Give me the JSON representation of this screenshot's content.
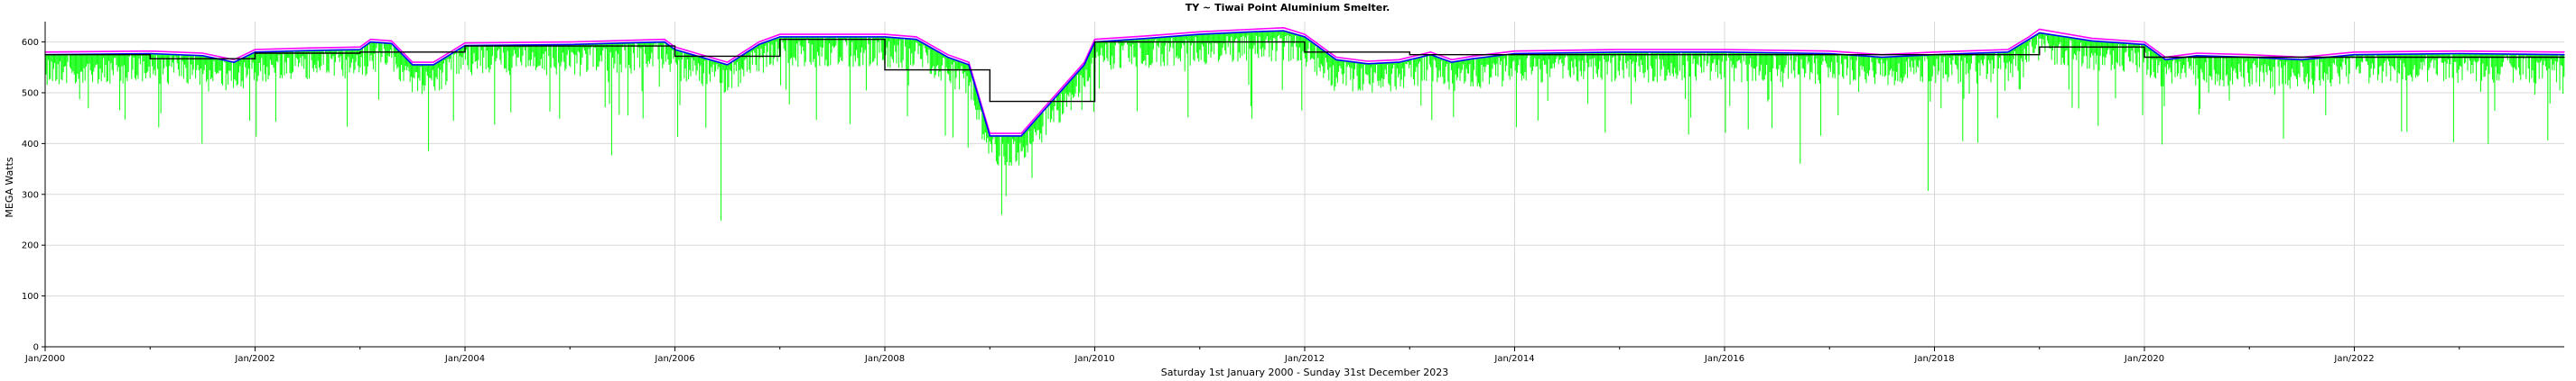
{
  "chart_data": {
    "type": "line",
    "title": "TY ~ Tiwai Point Aluminium Smelter.",
    "ylabel": "MEGA Watts",
    "xlabel": "Saturday 1st January 2000  -  Sunday 31st December 2023",
    "xlim": [
      2000.0,
      2024.0
    ],
    "ylim": [
      0,
      640
    ],
    "grid": true,
    "x_tick_labels": [
      {
        "x": 2000,
        "label": "Jan/2000"
      },
      {
        "x": 2002,
        "label": "Jan/2002"
      },
      {
        "x": 2004,
        "label": "Jan/2004"
      },
      {
        "x": 2006,
        "label": "Jan/2006"
      },
      {
        "x": 2008,
        "label": "Jan/2008"
      },
      {
        "x": 2010,
        "label": "Jan/2010"
      },
      {
        "x": 2012,
        "label": "Jan/2012"
      },
      {
        "x": 2014,
        "label": "Jan/2014"
      },
      {
        "x": 2016,
        "label": "Jan/2016"
      },
      {
        "x": 2018,
        "label": "Jan/2018"
      },
      {
        "x": 2020,
        "label": "Jan/2020"
      },
      {
        "x": 2022,
        "label": "Jan/2022"
      }
    ],
    "y_ticks": [
      0,
      100,
      200,
      300,
      400,
      500,
      600
    ],
    "colors": {
      "max": "#ff00ff",
      "mean": "#0000ff",
      "min": "#00ff00",
      "step": "#000000",
      "cyan": "#00c0ff"
    },
    "series": [
      {
        "role": "max",
        "x": [
          2000.0,
          2001.0,
          2001.5,
          2001.8,
          2002.0,
          2002.5,
          2003.0,
          2003.1,
          2003.3,
          2003.5,
          2003.7,
          2004.0,
          2005.0,
          2005.9,
          2006.0,
          2006.3,
          2006.5,
          2006.8,
          2007.0,
          2008.0,
          2008.3,
          2008.6,
          2008.8,
          2009.0,
          2009.3,
          2009.6,
          2009.9,
          2010.0,
          2010.5,
          2011.0,
          2011.5,
          2011.8,
          2012.0,
          2012.3,
          2012.6,
          2012.9,
          2013.2,
          2013.4,
          2013.6,
          2014.0,
          2015.0,
          2016.0,
          2017.0,
          2017.5,
          2018.0,
          2018.7,
          2018.9,
          2019.0,
          2019.5,
          2020.0,
          2020.2,
          2020.5,
          2021.0,
          2021.5,
          2022.0,
          2023.0,
          2024.0
        ],
        "values": [
          580,
          582,
          578,
          565,
          585,
          588,
          590,
          605,
          602,
          560,
          560,
          598,
          600,
          605,
          590,
          572,
          560,
          600,
          615,
          615,
          610,
          575,
          560,
          420,
          420,
          490,
          560,
          605,
          612,
          620,
          625,
          628,
          615,
          570,
          562,
          565,
          580,
          565,
          572,
          582,
          585,
          585,
          582,
          575,
          580,
          585,
          610,
          625,
          607,
          600,
          570,
          578,
          575,
          570,
          580,
          582,
          580
        ]
      },
      {
        "role": "mean",
        "x": [
          2000.0,
          2001.0,
          2001.5,
          2001.8,
          2002.0,
          2002.5,
          2003.0,
          2003.1,
          2003.3,
          2003.5,
          2003.7,
          2004.0,
          2005.0,
          2005.9,
          2006.0,
          2006.3,
          2006.5,
          2006.8,
          2007.0,
          2008.0,
          2008.3,
          2008.6,
          2008.8,
          2009.0,
          2009.3,
          2009.6,
          2009.9,
          2010.0,
          2010.5,
          2011.0,
          2011.5,
          2011.8,
          2012.0,
          2012.3,
          2012.6,
          2012.9,
          2013.2,
          2013.4,
          2013.6,
          2014.0,
          2015.0,
          2016.0,
          2017.0,
          2017.5,
          2018.0,
          2018.7,
          2018.9,
          2019.0,
          2019.5,
          2020.0,
          2020.2,
          2020.5,
          2021.0,
          2021.5,
          2022.0,
          2023.0,
          2024.0
        ],
        "values": [
          575,
          577,
          573,
          560,
          580,
          583,
          585,
          600,
          597,
          555,
          555,
          593,
          595,
          600,
          585,
          567,
          555,
          595,
          610,
          610,
          605,
          570,
          555,
          415,
          415,
          485,
          555,
          600,
          607,
          615,
          620,
          622,
          610,
          565,
          557,
          560,
          575,
          560,
          567,
          577,
          580,
          580,
          577,
          570,
          575,
          580,
          605,
          618,
          602,
          595,
          565,
          573,
          570,
          565,
          575,
          577,
          575
        ]
      },
      {
        "role": "step",
        "x": [
          2000.0,
          2001.0,
          2001.0,
          2002.0,
          2002.0,
          2003.0,
          2003.0,
          2004.0,
          2004.0,
          2006.0,
          2006.0,
          2007.0,
          2007.0,
          2008.0,
          2008.0,
          2009.0,
          2009.0,
          2010.0,
          2010.0,
          2012.0,
          2012.0,
          2013.0,
          2013.0,
          2019.0,
          2019.0,
          2020.0,
          2020.0,
          2024.0
        ],
        "values": [
          575,
          575,
          567,
          567,
          578,
          578,
          580,
          580,
          592,
          592,
          572,
          572,
          605,
          605,
          545,
          545,
          483,
          483,
          600,
          600,
          580,
          580,
          575,
          575,
          590,
          590,
          570,
          570
        ]
      }
    ],
    "min_series": {
      "role": "min",
      "description_values": "daily minimum spikes",
      "baseline_from": "mean",
      "typical_dip": 60,
      "max_dip": 350
    }
  }
}
